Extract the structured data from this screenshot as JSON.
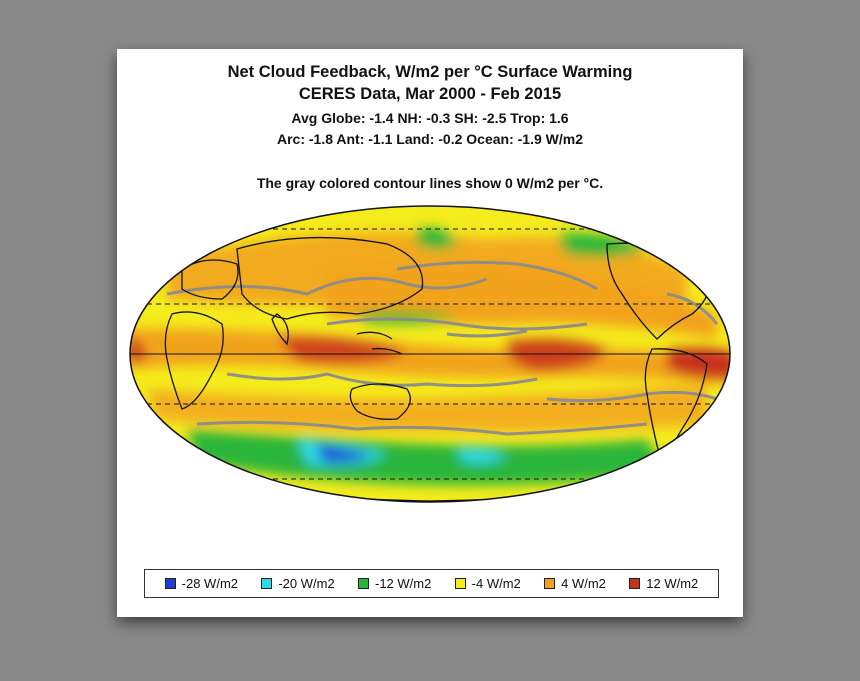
{
  "header": {
    "title_line1": "Net Cloud Feedback, W/m2 per °C Surface Warming",
    "title_line2": "CERES Data, Mar 2000 - Feb 2015",
    "stats_line1": "Avg Globe: -1.4  NH: -0.3  SH: -2.5  Trop: 1.6",
    "stats_line2": "Arc: -1.8  Ant: -1.1  Land: -0.2 Ocean: -1.9 W/m2",
    "note": "The gray colored contour lines show 0 W/m2 per °C."
  },
  "legend": {
    "items": [
      {
        "label": "-28 W/m2",
        "color": "#1f3bd6"
      },
      {
        "label": "-20 W/m2",
        "color": "#2fd9e8"
      },
      {
        "label": "-12 W/m2",
        "color": "#29b53a"
      },
      {
        "label": "-4 W/m2",
        "color": "#f4ec1c"
      },
      {
        "label": "4 W/m2",
        "color": "#f2a31e"
      },
      {
        "label": "12 W/m2",
        "color": "#c8321a"
      }
    ]
  },
  "map": {
    "projection": "Mollweide",
    "contour_color": "#8c8c8c",
    "coastline_color": "#111111"
  }
}
